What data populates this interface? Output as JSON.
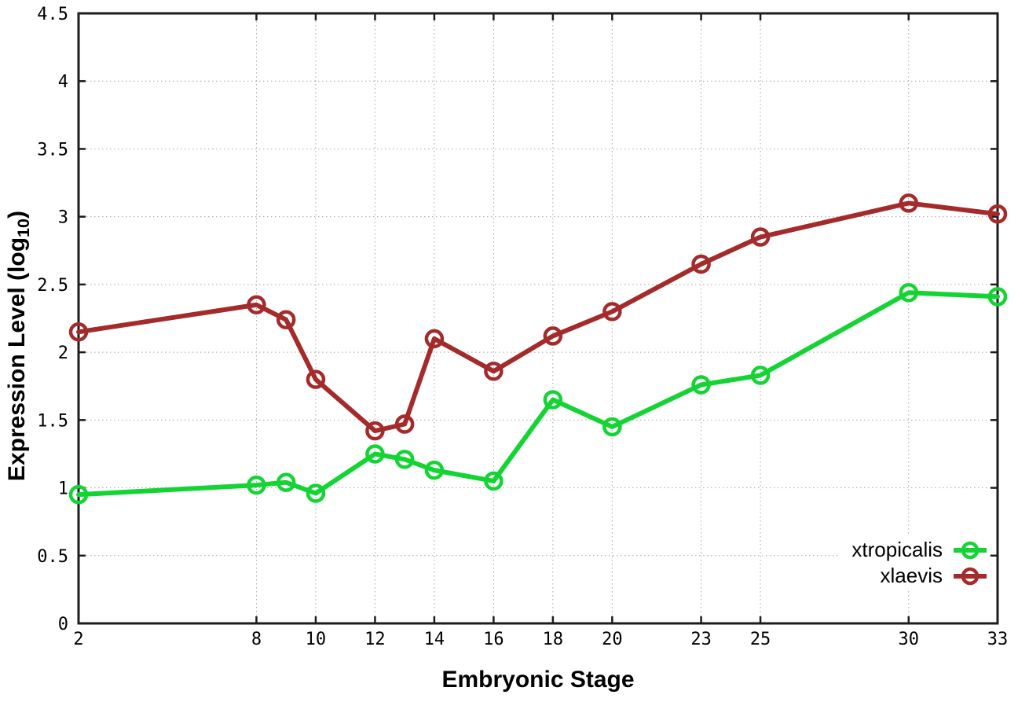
{
  "chart_data": {
    "type": "line",
    "title": "",
    "xlabel": "Embryonic Stage",
    "ylabel": "Expression Level (log10)",
    "ylabel_parts": {
      "prefix": "Expression Level (log",
      "subscript": "10",
      "suffix": ")"
    },
    "x": [
      2,
      8,
      9,
      10,
      12,
      13,
      14,
      16,
      18,
      20,
      23,
      25,
      30,
      33
    ],
    "series": [
      {
        "name": "xtropicalis",
        "color": "#14d434",
        "marker": "open-circle",
        "values": [
          0.95,
          1.02,
          1.04,
          0.96,
          1.25,
          1.21,
          1.13,
          1.05,
          1.65,
          1.45,
          1.76,
          1.83,
          2.44,
          2.41
        ]
      },
      {
        "name": "xlaevis",
        "color": "#a42b2b",
        "marker": "open-circle",
        "values": [
          2.15,
          2.35,
          2.24,
          1.8,
          1.42,
          1.47,
          2.1,
          1.86,
          2.12,
          2.3,
          2.65,
          2.85,
          3.1,
          3.02
        ]
      }
    ],
    "xlim": [
      2,
      33
    ],
    "ylim": [
      0,
      4.5
    ],
    "xticks": [
      2,
      8,
      10,
      12,
      14,
      16,
      18,
      20,
      23,
      25,
      30,
      33
    ],
    "xtick_labels": [
      "2",
      "8",
      "10",
      "12",
      "14",
      "16",
      "18",
      "20",
      "23",
      "25",
      "30",
      "33"
    ],
    "yticks": [
      0,
      0.5,
      1,
      1.5,
      2,
      2.5,
      3,
      3.5,
      4,
      4.5
    ],
    "ytick_labels": [
      "0",
      "0.5",
      "1",
      "1.5",
      "2",
      "2.5",
      "3",
      "3.5",
      "4",
      "4.5"
    ],
    "grid": true,
    "grid_style": "dotted",
    "legend_position": "inside-bottom-right",
    "colors": {
      "axis": "#1c1c1c",
      "grid": "#a8a8a8",
      "text": "#000000",
      "background": "#ffffff"
    }
  }
}
